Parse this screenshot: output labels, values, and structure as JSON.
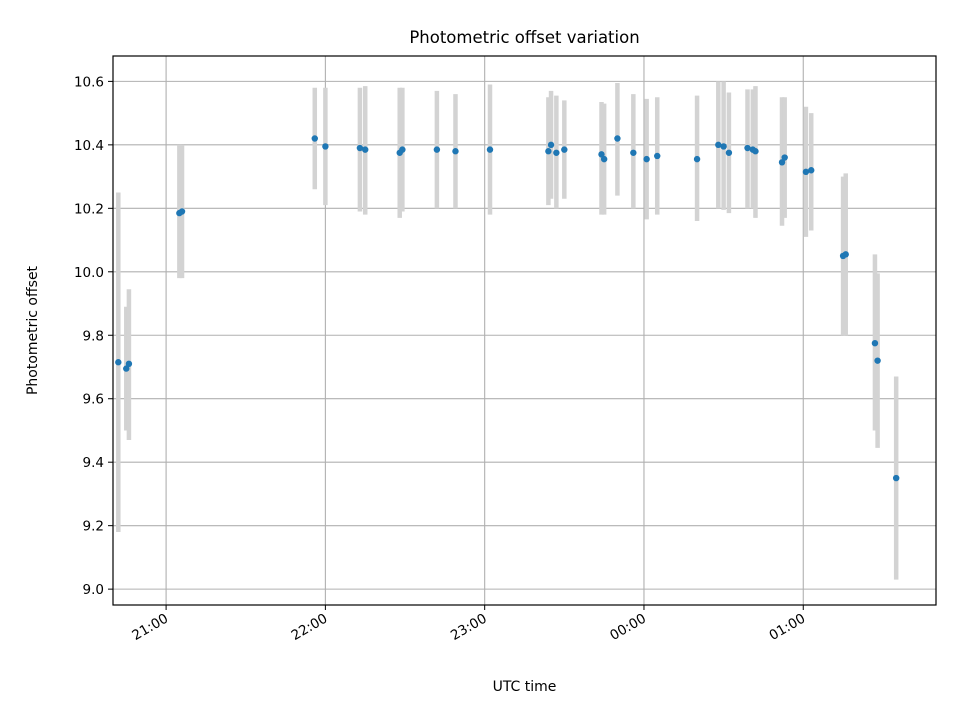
{
  "chart_data": {
    "type": "scatter",
    "title": "Photometric offset variation",
    "xlabel": "UTC time",
    "ylabel": "Photometric offset",
    "x_axis_type": "time",
    "xlim": [
      "20:40",
      "01:50"
    ],
    "ylim": [
      8.95,
      10.68
    ],
    "x_ticks": [
      {
        "time": "21:00",
        "label": "21:00"
      },
      {
        "time": "22:00",
        "label": "22:00"
      },
      {
        "time": "23:00",
        "label": "23:00"
      },
      {
        "time": "00:00",
        "label": "00:00"
      },
      {
        "time": "01:00",
        "label": "01:00"
      }
    ],
    "y_ticks": [
      {
        "value": 9.0,
        "label": "9.0"
      },
      {
        "value": 9.2,
        "label": "9.2"
      },
      {
        "value": 9.4,
        "label": "9.4"
      },
      {
        "value": 9.6,
        "label": "9.6"
      },
      {
        "value": 9.8,
        "label": "9.8"
      },
      {
        "value": 10.0,
        "label": "10.0"
      },
      {
        "value": 10.2,
        "label": "10.2"
      },
      {
        "value": 10.4,
        "label": "10.4"
      },
      {
        "value": 10.6,
        "label": "10.6"
      }
    ],
    "grid": true,
    "colors": {
      "point": "#1f77b4",
      "errorbar": "#d3d3d3",
      "grid": "#b0b0b0"
    },
    "points": [
      {
        "time": "20:42",
        "y": 9.715,
        "err_low": 9.18,
        "err_high": 10.25
      },
      {
        "time": "20:45",
        "y": 9.695,
        "err_low": 9.5,
        "err_high": 9.89
      },
      {
        "time": "20:46",
        "y": 9.71,
        "err_low": 9.47,
        "err_high": 9.945
      },
      {
        "time": "21:05",
        "y": 10.185,
        "err_low": 9.98,
        "err_high": 10.4
      },
      {
        "time": "21:06",
        "y": 10.19,
        "err_low": 9.98,
        "err_high": 10.4
      },
      {
        "time": "21:56",
        "y": 10.42,
        "err_low": 10.26,
        "err_high": 10.58
      },
      {
        "time": "22:00",
        "y": 10.395,
        "err_low": 10.21,
        "err_high": 10.58
      },
      {
        "time": "22:13",
        "y": 10.39,
        "err_low": 10.19,
        "err_high": 10.58
      },
      {
        "time": "22:15",
        "y": 10.385,
        "err_low": 10.18,
        "err_high": 10.585
      },
      {
        "time": "22:28",
        "y": 10.375,
        "err_low": 10.17,
        "err_high": 10.58
      },
      {
        "time": "22:29",
        "y": 10.385,
        "err_low": 10.19,
        "err_high": 10.58
      },
      {
        "time": "22:42",
        "y": 10.385,
        "err_low": 10.2,
        "err_high": 10.57
      },
      {
        "time": "22:49",
        "y": 10.38,
        "err_low": 10.2,
        "err_high": 10.56
      },
      {
        "time": "23:02",
        "y": 10.385,
        "err_low": 10.18,
        "err_high": 10.59
      },
      {
        "time": "23:24",
        "y": 10.38,
        "err_low": 10.21,
        "err_high": 10.55
      },
      {
        "time": "23:25",
        "y": 10.4,
        "err_low": 10.23,
        "err_high": 10.57
      },
      {
        "time": "23:27",
        "y": 10.375,
        "err_low": 10.2,
        "err_high": 10.555
      },
      {
        "time": "23:30",
        "y": 10.385,
        "err_low": 10.23,
        "err_high": 10.54
      },
      {
        "time": "23:44",
        "y": 10.37,
        "err_low": 10.18,
        "err_high": 10.535
      },
      {
        "time": "23:45",
        "y": 10.355,
        "err_low": 10.18,
        "err_high": 10.53
      },
      {
        "time": "23:50",
        "y": 10.42,
        "err_low": 10.24,
        "err_high": 10.595
      },
      {
        "time": "23:56",
        "y": 10.375,
        "err_low": 10.2,
        "err_high": 10.56
      },
      {
        "time": "00:01",
        "y": 10.355,
        "err_low": 10.165,
        "err_high": 10.545
      },
      {
        "time": "00:05",
        "y": 10.365,
        "err_low": 10.18,
        "err_high": 10.55
      },
      {
        "time": "00:20",
        "y": 10.355,
        "err_low": 10.16,
        "err_high": 10.555
      },
      {
        "time": "00:28",
        "y": 10.4,
        "err_low": 10.2,
        "err_high": 10.6
      },
      {
        "time": "00:30",
        "y": 10.395,
        "err_low": 10.195,
        "err_high": 10.6
      },
      {
        "time": "00:32",
        "y": 10.375,
        "err_low": 10.185,
        "err_high": 10.565
      },
      {
        "time": "00:39",
        "y": 10.39,
        "err_low": 10.2,
        "err_high": 10.575
      },
      {
        "time": "00:41",
        "y": 10.385,
        "err_low": 10.2,
        "err_high": 10.575
      },
      {
        "time": "00:42",
        "y": 10.38,
        "err_low": 10.17,
        "err_high": 10.585
      },
      {
        "time": "00:52",
        "y": 10.345,
        "err_low": 10.145,
        "err_high": 10.55
      },
      {
        "time": "00:53",
        "y": 10.36,
        "err_low": 10.17,
        "err_high": 10.55
      },
      {
        "time": "01:01",
        "y": 10.315,
        "err_low": 10.11,
        "err_high": 10.52
      },
      {
        "time": "01:03",
        "y": 10.32,
        "err_low": 10.13,
        "err_high": 10.5
      },
      {
        "time": "01:15",
        "y": 10.05,
        "err_low": 9.8,
        "err_high": 10.3
      },
      {
        "time": "01:16",
        "y": 10.055,
        "err_low": 9.8,
        "err_high": 10.31
      },
      {
        "time": "01:27",
        "y": 9.775,
        "err_low": 9.5,
        "err_high": 10.055
      },
      {
        "time": "01:28",
        "y": 9.72,
        "err_low": 9.445,
        "err_high": 9.995
      },
      {
        "time": "01:35",
        "y": 9.35,
        "err_low": 9.03,
        "err_high": 9.67
      }
    ]
  }
}
